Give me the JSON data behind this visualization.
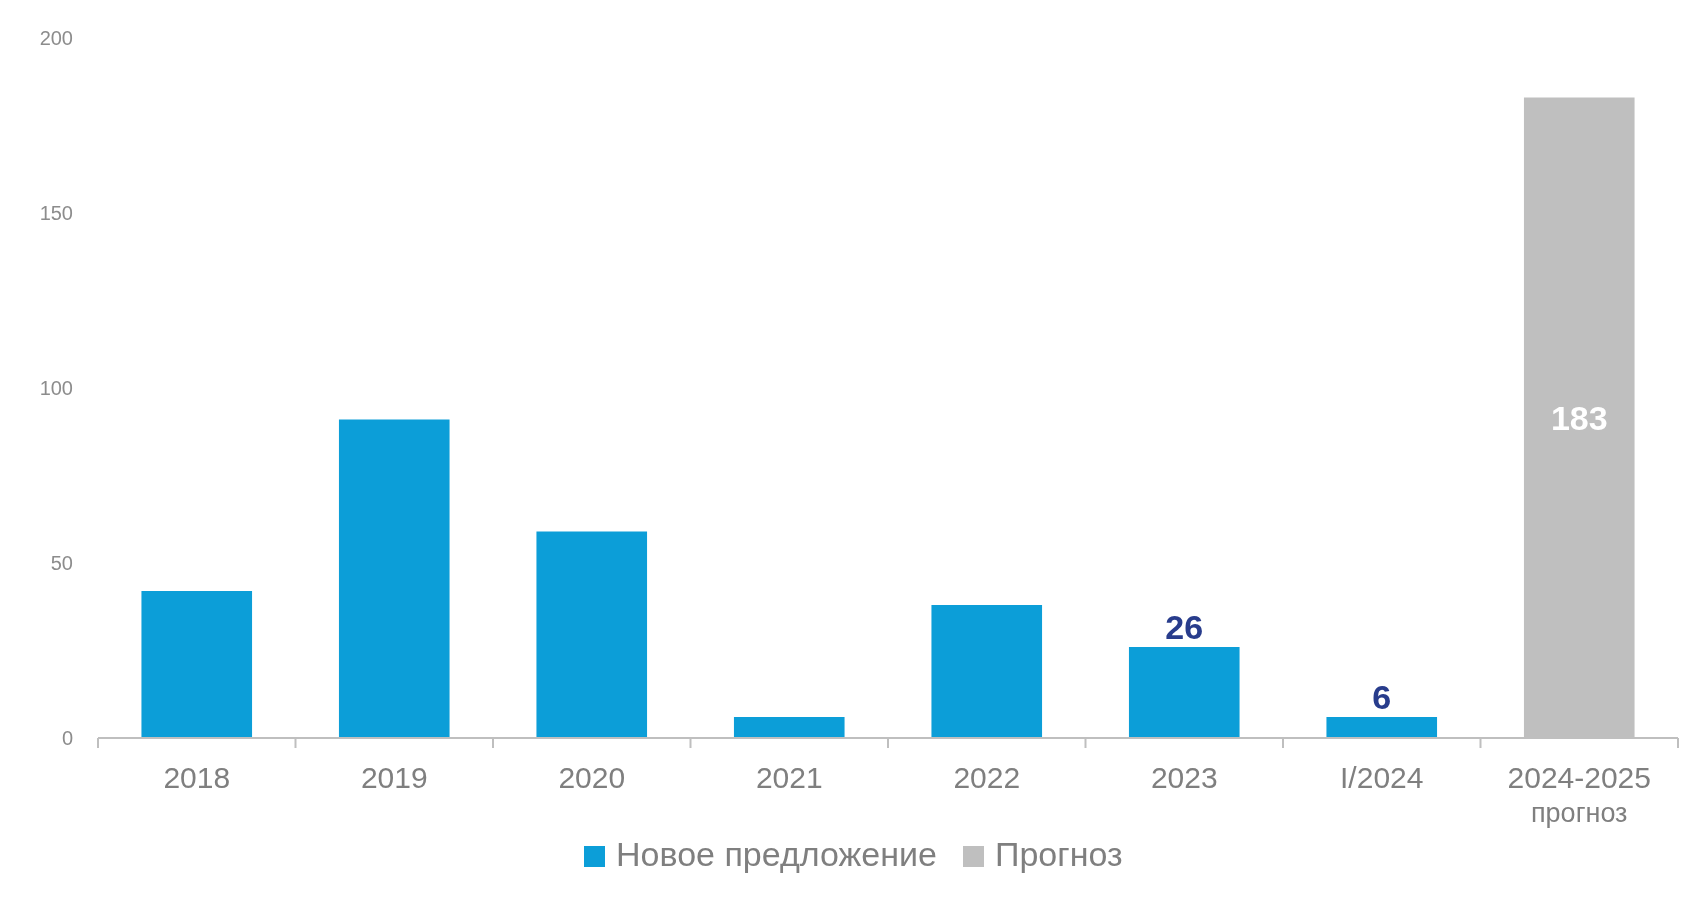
{
  "chart_data": {
    "type": "bar",
    "categories": [
      "2018",
      "2019",
      "2020",
      "2021",
      "2022",
      "2023",
      "I/2024",
      "2024-2025\nпрогноз"
    ],
    "series": [
      {
        "name": "Новое предложение",
        "color": "#0c9ed8",
        "values": [
          42,
          91,
          59,
          6,
          38,
          26,
          6,
          null
        ],
        "value_labels": [
          null,
          null,
          null,
          null,
          null,
          "26",
          "6",
          null
        ]
      },
      {
        "name": "Прогноз",
        "color": "#bfbfbf",
        "values": [
          null,
          null,
          null,
          null,
          null,
          null,
          null,
          183
        ],
        "value_labels": [
          null,
          null,
          null,
          null,
          null,
          null,
          null,
          "183"
        ]
      }
    ],
    "ylim": [
      0,
      200
    ],
    "yticks": [
      0,
      50,
      100,
      150,
      200
    ],
    "grid": false,
    "legend": "bottom"
  }
}
